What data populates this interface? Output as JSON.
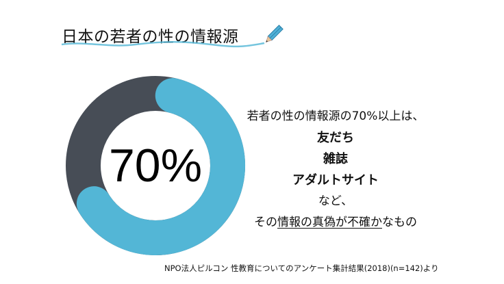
{
  "title": "日本の若者の性の情報源",
  "chart_data": {
    "type": "pie",
    "variant": "donut",
    "slices": [
      {
        "value": 70,
        "color": "#53b6d6"
      },
      {
        "value": 30,
        "color": "#474d56"
      }
    ],
    "center_label": "70%"
  },
  "description": {
    "line1": "若者の性の情報源の70%以上は、",
    "items": [
      "友だち",
      "雑誌",
      "アダルトサイト"
    ],
    "line_etc": "など、",
    "last_prefix": "その",
    "last_underlined_1": "情報の真偽が不確か",
    "last_suffix": "なもの"
  },
  "source": "NPO法人ピルコン 性教育についてのアンケート集計結果(2018)(n=142)より",
  "icons": {
    "decoration": "pencil-icon"
  }
}
